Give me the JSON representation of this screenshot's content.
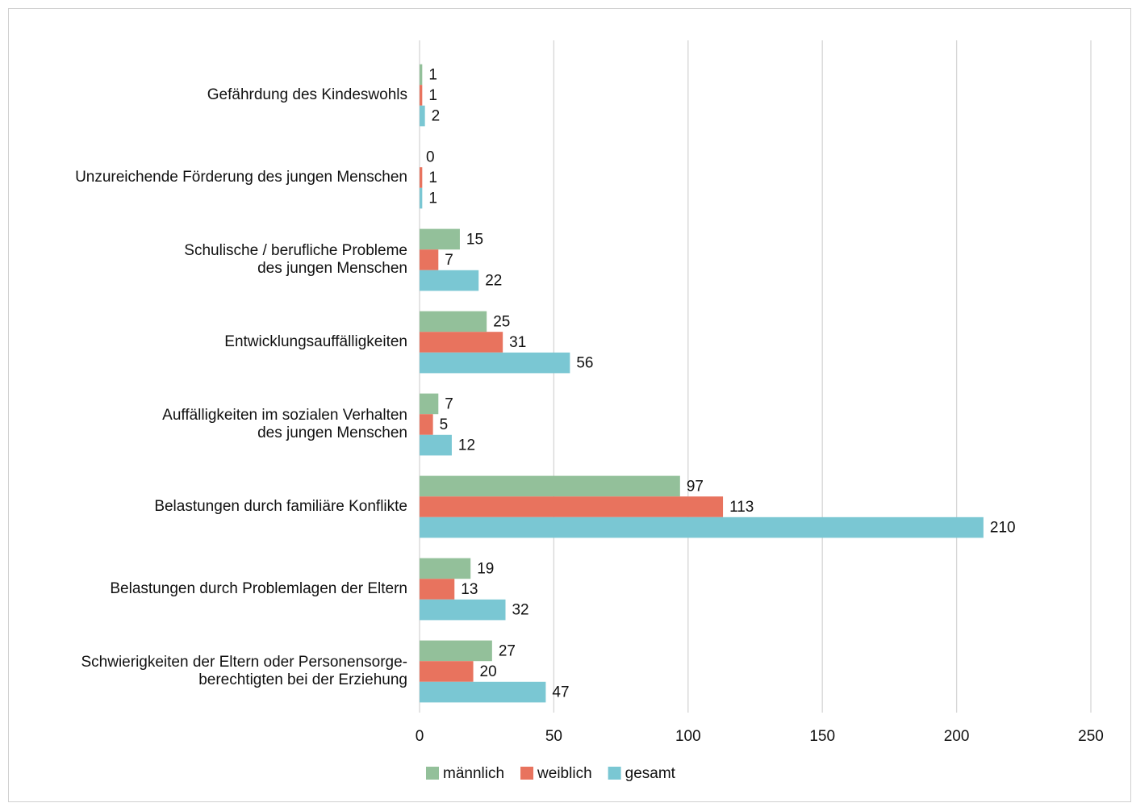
{
  "chart_data": {
    "type": "bar",
    "orientation": "horizontal",
    "categories": [
      "Gefährdung des Kindeswohls",
      "Unzureichende Förderung des jungen Menschen",
      "Schulische / berufliche Probleme\ndes jungen Menschen",
      "Entwicklungsauffälligkeiten",
      "Auffälligkeiten im sozialen Verhalten\ndes jungen Menschen",
      "Belastungen durch familiäre Konflikte",
      "Belastungen durch Problemlagen der Eltern",
      "Schwierigkeiten der Eltern oder Personensorge-\nberechtigten bei der Erziehung"
    ],
    "series": [
      {
        "name": "männlich",
        "color": "#93c09a",
        "values": [
          1,
          0,
          15,
          25,
          7,
          97,
          19,
          27
        ]
      },
      {
        "name": "weiblich",
        "color": "#e8735e",
        "values": [
          1,
          1,
          7,
          31,
          5,
          113,
          13,
          20
        ]
      },
      {
        "name": "gesamt",
        "color": "#7ac7d3",
        "values": [
          2,
          1,
          22,
          56,
          12,
          210,
          32,
          47
        ]
      }
    ],
    "xlim": [
      0,
      250
    ],
    "xticks": [
      0,
      50,
      100,
      150,
      200,
      250
    ],
    "grid": true,
    "legend": "bottom"
  }
}
